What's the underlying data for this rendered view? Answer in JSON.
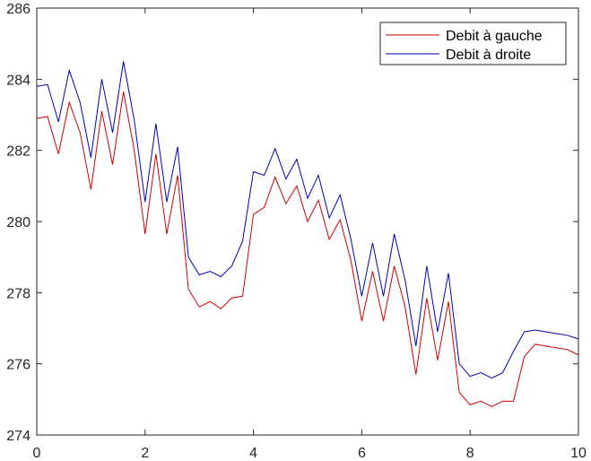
{
  "chart_data": {
    "type": "line",
    "title": "",
    "xlabel": "",
    "ylabel": "",
    "xlim": [
      0,
      10
    ],
    "ylim": [
      274,
      286
    ],
    "xticks": [
      0,
      2,
      4,
      6,
      8,
      10
    ],
    "yticks": [
      274,
      276,
      278,
      280,
      282,
      284,
      286
    ],
    "grid": false,
    "legend_position": "top-right",
    "series": [
      {
        "name": "Debit à gauche",
        "color": "#cc0000",
        "x": [
          0,
          0.2,
          0.4,
          0.6,
          0.8,
          1.0,
          1.2,
          1.4,
          1.6,
          1.8,
          2.0,
          2.2,
          2.4,
          2.6,
          2.8,
          3.0,
          3.2,
          3.4,
          3.6,
          3.8,
          4.0,
          4.2,
          4.4,
          4.6,
          4.8,
          5.0,
          5.2,
          5.4,
          5.6,
          5.8,
          6.0,
          6.2,
          6.4,
          6.6,
          6.8,
          7.0,
          7.2,
          7.4,
          7.6,
          7.8,
          8.0,
          8.2,
          8.4,
          8.6,
          8.8,
          9.0,
          9.2,
          9.4,
          9.6,
          9.8,
          10.0
        ],
        "y": [
          282.9,
          282.95,
          281.9,
          283.35,
          282.5,
          280.9,
          283.1,
          281.6,
          283.65,
          282.0,
          279.65,
          281.9,
          279.65,
          281.3,
          278.1,
          277.6,
          277.75,
          277.55,
          277.85,
          277.9,
          280.2,
          280.4,
          281.25,
          280.5,
          281.0,
          280.0,
          280.6,
          279.5,
          280.05,
          278.9,
          277.2,
          278.6,
          277.2,
          278.75,
          277.6,
          275.7,
          277.85,
          276.1,
          277.75,
          275.2,
          274.85,
          274.95,
          274.8,
          274.95,
          274.95,
          276.2,
          276.55,
          276.5,
          276.45,
          276.4,
          276.25
        ]
      },
      {
        "name": "Debit à droite",
        "color": "#0000b4",
        "x": [
          0,
          0.2,
          0.4,
          0.6,
          0.8,
          1.0,
          1.2,
          1.4,
          1.6,
          1.8,
          2.0,
          2.2,
          2.4,
          2.6,
          2.8,
          3.0,
          3.2,
          3.4,
          3.6,
          3.8,
          4.0,
          4.2,
          4.4,
          4.6,
          4.8,
          5.0,
          5.2,
          5.4,
          5.6,
          5.8,
          6.0,
          6.2,
          6.4,
          6.6,
          6.8,
          7.0,
          7.2,
          7.4,
          7.6,
          7.8,
          8.0,
          8.2,
          8.4,
          8.6,
          8.8,
          9.0,
          9.2,
          9.4,
          9.6,
          9.8,
          10.0
        ],
        "y": [
          283.8,
          283.85,
          282.8,
          284.25,
          283.35,
          281.8,
          284.0,
          282.5,
          284.5,
          282.85,
          280.55,
          282.75,
          280.55,
          282.1,
          279.0,
          278.5,
          278.6,
          278.45,
          278.75,
          279.45,
          281.4,
          281.3,
          282.05,
          281.2,
          281.75,
          280.65,
          281.3,
          280.1,
          280.75,
          279.5,
          277.9,
          279.4,
          277.9,
          279.65,
          278.35,
          276.5,
          278.75,
          276.9,
          278.55,
          276.0,
          275.65,
          275.75,
          275.6,
          275.75,
          276.35,
          276.9,
          276.95,
          276.9,
          276.85,
          276.8,
          276.7
        ]
      }
    ]
  }
}
